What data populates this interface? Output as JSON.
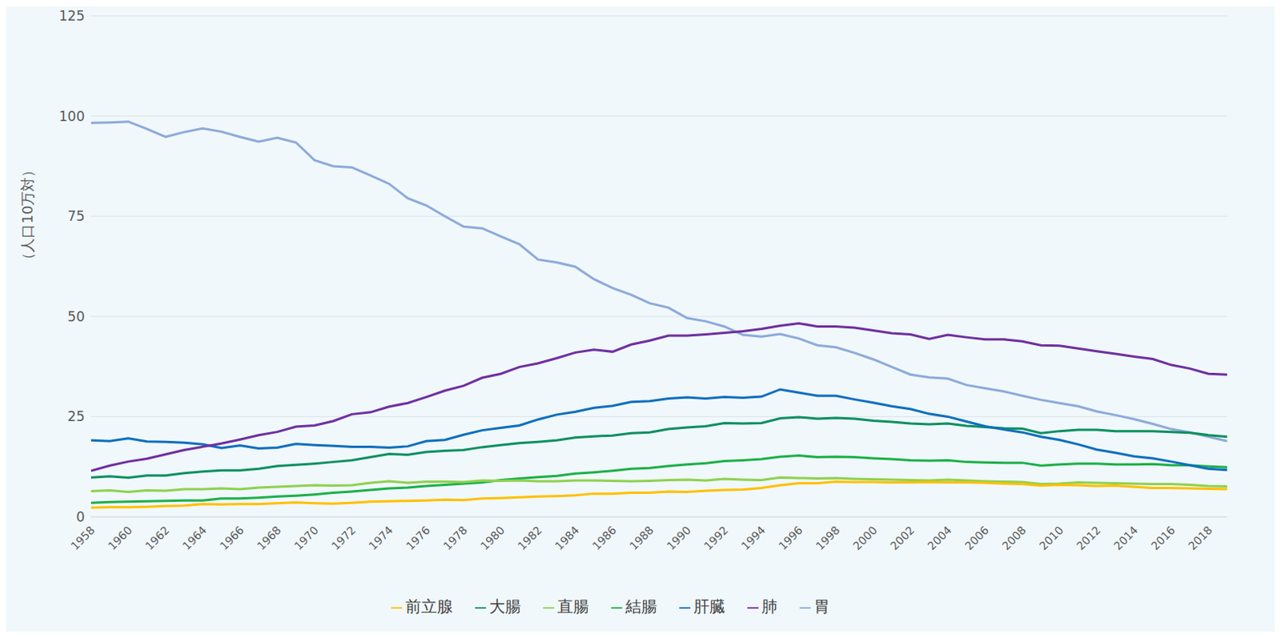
{
  "chart_data": {
    "type": "line",
    "y_label": "（人口10万対）",
    "grid": true,
    "legend": "bottom",
    "x": [
      1958,
      1959,
      1960,
      1961,
      1962,
      1963,
      1964,
      1965,
      1966,
      1967,
      1968,
      1969,
      1970,
      1971,
      1972,
      1973,
      1974,
      1975,
      1976,
      1977,
      1978,
      1979,
      1980,
      1981,
      1982,
      1983,
      1984,
      1985,
      1986,
      1987,
      1988,
      1989,
      1990,
      1991,
      1992,
      1993,
      1994,
      1995,
      1996,
      1997,
      1998,
      1999,
      2000,
      2001,
      2002,
      2003,
      2004,
      2005,
      2006,
      2007,
      2008,
      2009,
      2010,
      2011,
      2012,
      2013,
      2014,
      2015,
      2016,
      2017,
      2018,
      2019
    ],
    "xlim": [
      1958,
      2019
    ],
    "xticks": [
      1958,
      1960,
      1962,
      1964,
      1966,
      1968,
      1970,
      1972,
      1974,
      1976,
      1978,
      1980,
      1982,
      1984,
      1986,
      1988,
      1990,
      1992,
      1994,
      1996,
      1998,
      2000,
      2002,
      2004,
      2006,
      2008,
      2010,
      2012,
      2014,
      2016,
      2018
    ],
    "ylim": [
      0,
      125
    ],
    "yticks": [
      0,
      25,
      50,
      75,
      100,
      125
    ],
    "series": [
      {
        "name": "胃",
        "color": "#8eaadb",
        "values": [
          98.3,
          98.4,
          98.6,
          96.8,
          94.8,
          96.0,
          96.9,
          96.1,
          94.8,
          93.6,
          94.6,
          93.4,
          89.0,
          87.5,
          87.2,
          85.2,
          83.1,
          79.5,
          77.7,
          75.0,
          72.4,
          72.0,
          70.0,
          68.0,
          64.2,
          63.5,
          62.4,
          59.3,
          57.1,
          55.4,
          53.3,
          52.2,
          49.6,
          48.8,
          47.5,
          45.4,
          45.0,
          45.6,
          44.5,
          42.8,
          42.3,
          40.9,
          39.3,
          37.4,
          35.5,
          34.8,
          34.5,
          32.9,
          32.1,
          31.3,
          30.2,
          29.2,
          28.4,
          27.6,
          26.3,
          25.4,
          24.4,
          23.2,
          21.9,
          21.1,
          20.0,
          18.9
        ]
      },
      {
        "name": "結腸",
        "color": "#1db04a",
        "values": [
          3.5,
          3.7,
          3.8,
          3.9,
          4.0,
          4.1,
          4.1,
          4.6,
          4.6,
          4.8,
          5.1,
          5.3,
          5.6,
          6.0,
          6.3,
          6.7,
          7.1,
          7.3,
          7.7,
          8.0,
          8.3,
          8.6,
          9.2,
          9.6,
          9.9,
          10.2,
          10.8,
          11.1,
          11.5,
          12.0,
          12.2,
          12.7,
          13.1,
          13.4,
          13.9,
          14.1,
          14.4,
          15.0,
          15.3,
          14.9,
          15.0,
          14.9,
          14.6,
          14.4,
          14.1,
          14.0,
          14.1,
          13.7,
          13.6,
          13.5,
          13.5,
          12.8,
          13.1,
          13.3,
          13.3,
          13.1,
          13.1,
          13.2,
          12.9,
          12.9,
          12.6,
          12.4
        ]
      },
      {
        "name": "直腸",
        "color": "#8fd14f",
        "values": [
          6.4,
          6.6,
          6.2,
          6.6,
          6.5,
          6.9,
          6.9,
          7.1,
          6.9,
          7.3,
          7.5,
          7.7,
          7.9,
          7.8,
          7.9,
          8.5,
          8.9,
          8.5,
          8.8,
          8.8,
          8.7,
          9.1,
          9.0,
          9.1,
          8.9,
          8.9,
          9.1,
          9.1,
          9.0,
          8.9,
          9.0,
          9.2,
          9.3,
          9.1,
          9.5,
          9.3,
          9.2,
          9.8,
          9.7,
          9.6,
          9.7,
          9.5,
          9.4,
          9.3,
          9.2,
          9.1,
          9.3,
          9.1,
          8.9,
          8.8,
          8.7,
          8.2,
          8.3,
          8.6,
          8.5,
          8.4,
          8.3,
          8.2,
          8.2,
          8.0,
          7.7,
          7.6
        ]
      },
      {
        "name": "大腸",
        "color": "#0f9060",
        "values": [
          9.8,
          10.1,
          9.8,
          10.3,
          10.3,
          10.9,
          11.3,
          11.6,
          11.6,
          12.0,
          12.7,
          13.0,
          13.3,
          13.7,
          14.1,
          14.9,
          15.7,
          15.5,
          16.2,
          16.5,
          16.7,
          17.4,
          17.9,
          18.4,
          18.7,
          19.1,
          19.8,
          20.1,
          20.3,
          20.9,
          21.1,
          21.9,
          22.3,
          22.6,
          23.4,
          23.3,
          23.4,
          24.6,
          24.9,
          24.5,
          24.7,
          24.5,
          24.0,
          23.7,
          23.3,
          23.1,
          23.3,
          22.7,
          22.4,
          22.1,
          22.0,
          20.9,
          21.4,
          21.7,
          21.7,
          21.4,
          21.4,
          21.4,
          21.2,
          21.0,
          20.4,
          20.0
        ]
      },
      {
        "name": "肝臓",
        "color": "#0f6fbf",
        "values": [
          19.1,
          18.9,
          19.6,
          18.8,
          18.7,
          18.5,
          18.1,
          17.2,
          17.8,
          17.1,
          17.3,
          18.2,
          17.9,
          17.7,
          17.5,
          17.5,
          17.3,
          17.6,
          18.9,
          19.2,
          20.5,
          21.6,
          22.2,
          22.8,
          24.3,
          25.5,
          26.2,
          27.2,
          27.7,
          28.7,
          28.9,
          29.5,
          29.8,
          29.5,
          29.9,
          29.7,
          30.0,
          31.8,
          31.0,
          30.2,
          30.2,
          29.3,
          28.5,
          27.6,
          26.9,
          25.7,
          25.0,
          23.8,
          22.6,
          21.8,
          21.1,
          20.0,
          19.2,
          18.1,
          16.8,
          16.0,
          15.1,
          14.6,
          13.8,
          12.9,
          12.0,
          11.7
        ]
      },
      {
        "name": "肺",
        "color": "#7030a0",
        "values": [
          11.5,
          12.8,
          13.8,
          14.5,
          15.6,
          16.7,
          17.5,
          18.3,
          19.3,
          20.4,
          21.2,
          22.5,
          22.8,
          23.9,
          25.6,
          26.1,
          27.5,
          28.4,
          29.9,
          31.5,
          32.7,
          34.7,
          35.7,
          37.4,
          38.3,
          39.6,
          41.0,
          41.7,
          41.2,
          43.0,
          44.0,
          45.2,
          45.2,
          45.5,
          45.9,
          46.3,
          46.9,
          47.7,
          48.3,
          47.5,
          47.5,
          47.2,
          46.5,
          45.8,
          45.5,
          44.4,
          45.4,
          44.8,
          44.3,
          44.3,
          43.8,
          42.8,
          42.7,
          42.0,
          41.3,
          40.7,
          40.0,
          39.4,
          37.9,
          37.0,
          35.7,
          35.5
        ]
      },
      {
        "name": "前立腺",
        "color": "#ffc000",
        "values": [
          2.3,
          2.4,
          2.4,
          2.5,
          2.7,
          2.8,
          3.2,
          3.1,
          3.2,
          3.2,
          3.4,
          3.6,
          3.4,
          3.3,
          3.5,
          3.8,
          3.9,
          4.0,
          4.1,
          4.3,
          4.2,
          4.6,
          4.7,
          4.9,
          5.1,
          5.2,
          5.4,
          5.8,
          5.8,
          6.0,
          6.0,
          6.3,
          6.2,
          6.5,
          6.7,
          6.8,
          7.2,
          7.9,
          8.4,
          8.4,
          8.8,
          8.7,
          8.7,
          8.6,
          8.6,
          8.7,
          8.6,
          8.6,
          8.5,
          8.3,
          8.2,
          7.8,
          8.0,
          7.9,
          7.7,
          7.8,
          7.5,
          7.2,
          7.2,
          7.1,
          7.0,
          6.9
        ]
      }
    ]
  }
}
